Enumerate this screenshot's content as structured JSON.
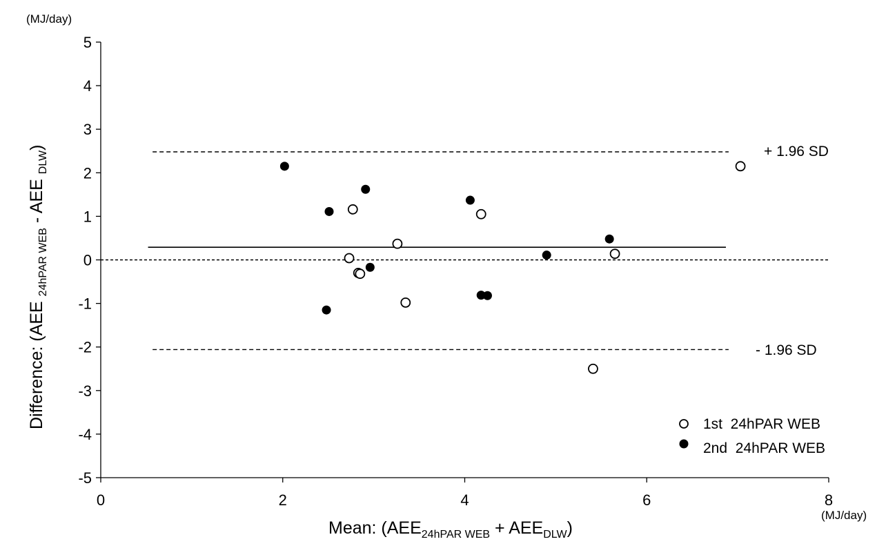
{
  "chart_data": {
    "type": "scatter",
    "y_unit": "(MJ/day)",
    "x_unit": "(MJ/day)",
    "xlabel": {
      "prefix": "Mean: (AEE",
      "sub1": "24hPAR WEB",
      "mid": " + AEE",
      "sub2": "DLW",
      "suffix": ")"
    },
    "ylabel": {
      "prefix": "Difference:  (AEE ",
      "sub1": "24hPAR WEB",
      "mid": " - AEE ",
      "sub2": "DLW",
      "suffix": ")"
    },
    "xlim": [
      0,
      8
    ],
    "ylim": [
      -5,
      5
    ],
    "x_ticks": [
      "0",
      "2",
      "4",
      "6",
      "8"
    ],
    "y_ticks": [
      "-5",
      "-4",
      "-3",
      "-2",
      "-1",
      "0",
      "1",
      "2",
      "3",
      "4",
      "5"
    ],
    "x_tick_values": [
      0,
      2,
      4,
      6,
      8
    ],
    "y_tick_values": [
      -5,
      -4,
      -3,
      -2,
      -1,
      0,
      1,
      2,
      3,
      4,
      5
    ],
    "reference_lines": {
      "upper": {
        "label": "+ 1.96 SD",
        "value": 2.48,
        "x_range": [
          0.57,
          6.9
        ],
        "style": "dashed"
      },
      "mean": {
        "value": 0.29,
        "x_range": [
          0.52,
          6.87
        ],
        "style": "solid"
      },
      "lower": {
        "label": "- 1.96 SD",
        "value": -2.06,
        "x_range": [
          0.57,
          6.9
        ],
        "style": "dashed"
      },
      "zero": {
        "value": 0,
        "x_range": [
          0,
          8
        ],
        "style": "dashed"
      }
    },
    "series": [
      {
        "name": "1st  24hPAR WEB",
        "marker": "open-circle",
        "points": [
          {
            "x": 2.77,
            "y": 1.16
          },
          {
            "x": 4.18,
            "y": 1.05
          },
          {
            "x": 3.26,
            "y": 0.37
          },
          {
            "x": 2.73,
            "y": 0.04
          },
          {
            "x": 2.83,
            "y": -0.3
          },
          {
            "x": 2.85,
            "y": -0.32
          },
          {
            "x": 3.35,
            "y": -0.98
          },
          {
            "x": 5.65,
            "y": 0.14
          },
          {
            "x": 5.41,
            "y": -2.5
          },
          {
            "x": 7.03,
            "y": 2.15
          }
        ]
      },
      {
        "name": "2nd  24hPAR WEB",
        "marker": "filled-circle",
        "points": [
          {
            "x": 2.02,
            "y": 2.15
          },
          {
            "x": 2.51,
            "y": 1.11
          },
          {
            "x": 2.91,
            "y": 1.62
          },
          {
            "x": 2.96,
            "y": -0.17
          },
          {
            "x": 2.48,
            "y": -1.15
          },
          {
            "x": 4.06,
            "y": 1.37
          },
          {
            "x": 4.18,
            "y": -0.81
          },
          {
            "x": 4.25,
            "y": -0.82
          },
          {
            "x": 4.9,
            "y": 0.11
          },
          {
            "x": 5.59,
            "y": 0.48
          }
        ]
      }
    ]
  }
}
